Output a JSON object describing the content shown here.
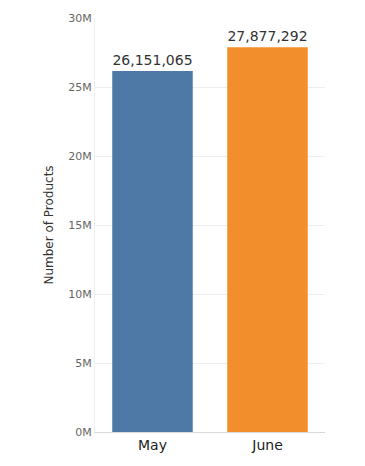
{
  "chart_data": {
    "type": "bar",
    "y_label": "Number of Products",
    "categories": [
      "May",
      "June"
    ],
    "values": [
      26151065,
      27877292
    ],
    "value_labels": [
      "26,151,065",
      "27,877,292"
    ],
    "colors": [
      "#4e79a7",
      "#f28e2b"
    ],
    "data_labels": true,
    "ylim": [
      0,
      30000000
    ],
    "yticks": [
      {
        "value": 0,
        "label": "0M"
      },
      {
        "value": 5000000,
        "label": "5M"
      },
      {
        "value": 10000000,
        "label": "10M"
      },
      {
        "value": 15000000,
        "label": "15M"
      },
      {
        "value": 20000000,
        "label": "20M"
      },
      {
        "value": 25000000,
        "label": "25M"
      },
      {
        "value": 30000000,
        "label": "30M"
      }
    ],
    "grid": true
  }
}
